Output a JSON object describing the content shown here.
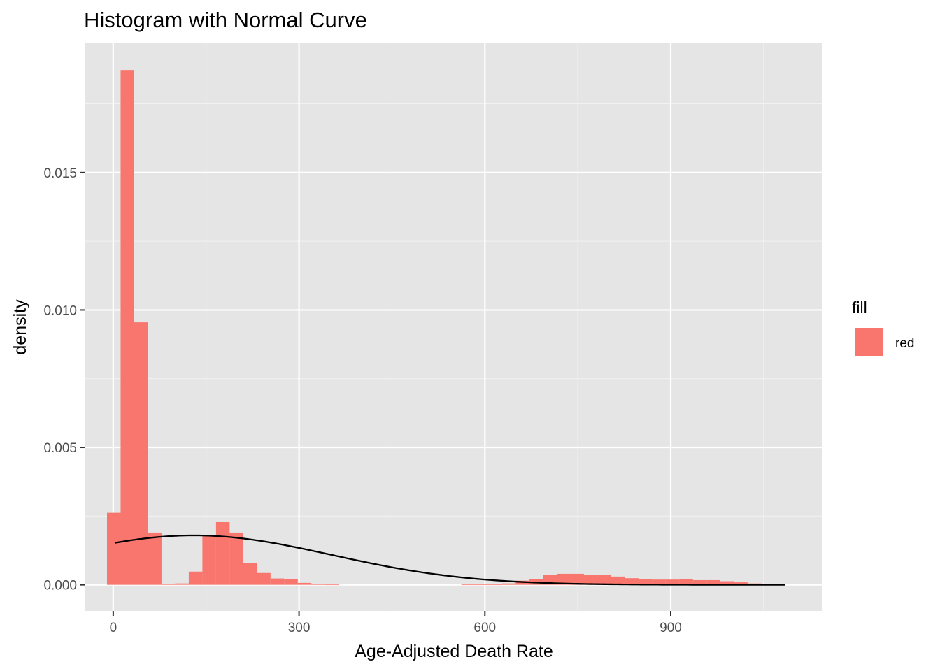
{
  "chart_data": {
    "type": "bar",
    "title": "Histogram with Normal Curve",
    "xlabel": "Age-Adjusted Death Rate",
    "ylabel": "density",
    "xlim": [
      -45,
      1145
    ],
    "ylim": [
      -0.00095,
      0.0197
    ],
    "x_ticks": [
      0,
      300,
      600,
      900
    ],
    "x_tick_labels": [
      "0",
      "300",
      "600",
      "900"
    ],
    "x_minor_gridlines": [
      150,
      450,
      750,
      1050
    ],
    "y_ticks": [
      0.0,
      0.005,
      0.01,
      0.015
    ],
    "y_tick_labels": [
      "0.000",
      "0.005",
      "0.010",
      "0.015"
    ],
    "y_minor_gridlines": [
      0.0025,
      0.0075,
      0.0125,
      0.0175
    ],
    "bin_width": 22,
    "bar_color": "#F8766D",
    "bins": [
      {
        "x0": -10,
        "x1": 12,
        "density": 0.00262
      },
      {
        "x0": 12,
        "x1": 34,
        "density": 0.01873
      },
      {
        "x0": 34,
        "x1": 56,
        "density": 0.00955
      },
      {
        "x0": 56,
        "x1": 78,
        "density": 0.0019
      },
      {
        "x0": 78,
        "x1": 100,
        "density": 2e-05
      },
      {
        "x0": 100,
        "x1": 122,
        "density": 5e-05
      },
      {
        "x0": 122,
        "x1": 144,
        "density": 0.00048
      },
      {
        "x0": 144,
        "x1": 166,
        "density": 0.0018
      },
      {
        "x0": 166,
        "x1": 188,
        "density": 0.00228
      },
      {
        "x0": 188,
        "x1": 210,
        "density": 0.0019
      },
      {
        "x0": 210,
        "x1": 232,
        "density": 0.0008
      },
      {
        "x0": 232,
        "x1": 254,
        "density": 0.00043
      },
      {
        "x0": 254,
        "x1": 276,
        "density": 0.00023
      },
      {
        "x0": 276,
        "x1": 298,
        "density": 0.0002
      },
      {
        "x0": 298,
        "x1": 320,
        "density": 7e-05
      },
      {
        "x0": 320,
        "x1": 342,
        "density": 3e-05
      },
      {
        "x0": 342,
        "x1": 364,
        "density": 1e-05
      },
      {
        "x0": 562,
        "x1": 584,
        "density": 1e-05
      },
      {
        "x0": 584,
        "x1": 606,
        "density": 1e-05
      },
      {
        "x0": 606,
        "x1": 628,
        "density": 1e-05
      },
      {
        "x0": 628,
        "x1": 650,
        "density": 5e-05
      },
      {
        "x0": 650,
        "x1": 672,
        "density": 0.00015
      },
      {
        "x0": 672,
        "x1": 694,
        "density": 0.0002
      },
      {
        "x0": 694,
        "x1": 716,
        "density": 0.00035
      },
      {
        "x0": 716,
        "x1": 738,
        "density": 0.0004
      },
      {
        "x0": 738,
        "x1": 760,
        "density": 0.0004
      },
      {
        "x0": 760,
        "x1": 782,
        "density": 0.00035
      },
      {
        "x0": 782,
        "x1": 804,
        "density": 0.00037
      },
      {
        "x0": 804,
        "x1": 826,
        "density": 0.0003
      },
      {
        "x0": 826,
        "x1": 848,
        "density": 0.00024
      },
      {
        "x0": 848,
        "x1": 870,
        "density": 0.0002
      },
      {
        "x0": 870,
        "x1": 892,
        "density": 0.00019
      },
      {
        "x0": 892,
        "x1": 914,
        "density": 0.00019
      },
      {
        "x0": 914,
        "x1": 936,
        "density": 0.00022
      },
      {
        "x0": 936,
        "x1": 958,
        "density": 0.00017
      },
      {
        "x0": 958,
        "x1": 980,
        "density": 0.00017
      },
      {
        "x0": 980,
        "x1": 1002,
        "density": 0.00013
      },
      {
        "x0": 1002,
        "x1": 1024,
        "density": 9e-05
      },
      {
        "x0": 1024,
        "x1": 1046,
        "density": 5e-05
      },
      {
        "x0": 1046,
        "x1": 1068,
        "density": 2e-05
      }
    ],
    "normal_curve": {
      "mean": 130,
      "sd": 222,
      "x_range": [
        3,
        1085
      ],
      "color": "#000000"
    },
    "legend": {
      "title": "fill",
      "entries": [
        {
          "label": "red",
          "color": "#F8766D"
        }
      ],
      "position": "right"
    },
    "grid": true,
    "panel_background": "#E5E5E5"
  }
}
